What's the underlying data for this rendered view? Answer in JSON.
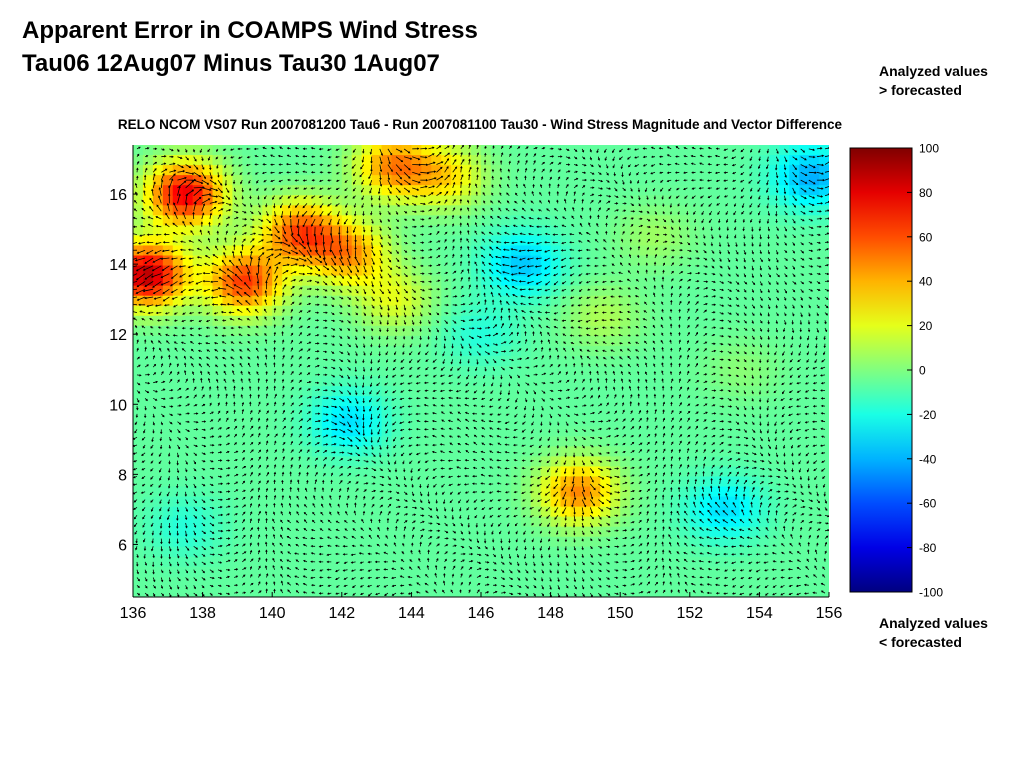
{
  "slide": {
    "title_line1": "Apparent Error in COAMPS Wind Stress",
    "title_line2": "Tau06 12Aug07 Minus Tau30 1Aug07"
  },
  "annotations": {
    "top_line1": "Analyzed values",
    "top_line2": "> forecasted",
    "bottom_line1": "Analyzed values",
    "bottom_line2": "< forecasted"
  },
  "chart_data": {
    "type": "heatmap",
    "title": "RELO NCOM VS07 Run 2007081200 Tau6 - Run 2007081100 Tau30 - Wind Stress Magnitude and Vector Difference",
    "xlabel": "",
    "ylabel": "",
    "xlim": [
      136,
      156
    ],
    "ylim": [
      4.5,
      17.4
    ],
    "x_ticks": [
      "136",
      "138",
      "140",
      "142",
      "144",
      "146",
      "148",
      "150",
      "152",
      "154",
      "156"
    ],
    "y_ticks": [
      "6",
      "8",
      "10",
      "12",
      "14",
      "16"
    ],
    "colorbar": {
      "range": [
        -100,
        100
      ],
      "ticks": [
        "100",
        "80",
        "60",
        "40",
        "20",
        "0",
        "-20",
        "-40",
        "-60",
        "-80",
        "-100"
      ],
      "colormap": "jet"
    },
    "grid": false,
    "vector_overlay": true,
    "field_features": [
      {
        "lon": 136.4,
        "lat": 13.7,
        "value": 95
      },
      {
        "lon": 137.5,
        "lat": 16.0,
        "value": 85
      },
      {
        "lon": 139.2,
        "lat": 13.5,
        "value": 70
      },
      {
        "lon": 140.8,
        "lat": 14.9,
        "value": 65
      },
      {
        "lon": 142.2,
        "lat": 14.3,
        "value": 50
      },
      {
        "lon": 143.5,
        "lat": 16.8,
        "value": 55
      },
      {
        "lon": 145.0,
        "lat": 16.5,
        "value": 35
      },
      {
        "lon": 143.5,
        "lat": 13.0,
        "value": 25
      },
      {
        "lon": 148.8,
        "lat": 7.5,
        "value": 55
      },
      {
        "lon": 149.5,
        "lat": 12.5,
        "value": 15
      },
      {
        "lon": 142.2,
        "lat": 9.5,
        "value": -25
      },
      {
        "lon": 147.2,
        "lat": 14.0,
        "value": -30
      },
      {
        "lon": 146.0,
        "lat": 12.0,
        "value": -12
      },
      {
        "lon": 153.0,
        "lat": 7.0,
        "value": -25
      },
      {
        "lon": 155.5,
        "lat": 16.5,
        "value": -35
      },
      {
        "lon": 137.5,
        "lat": 6.5,
        "value": -12
      },
      {
        "lon": 151.0,
        "lat": 14.8,
        "value": 12
      },
      {
        "lon": 153.5,
        "lat": 11.0,
        "value": 8
      }
    ]
  }
}
